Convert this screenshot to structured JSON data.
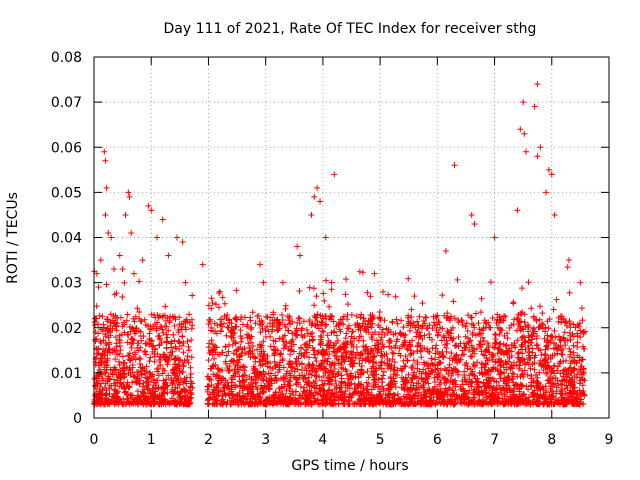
{
  "chart_data": {
    "type": "scatter",
    "title": "Day 111 of 2021, Rate Of TEC Index for receiver sthg",
    "xlabel": "GPS time / hours",
    "ylabel": "ROTI / TECUs",
    "xlim": [
      0,
      9
    ],
    "ylim": [
      0,
      0.08
    ],
    "x_ticks": [
      "0",
      "1",
      "2",
      "3",
      "4",
      "5",
      "6",
      "7",
      "8",
      "9"
    ],
    "y_ticks": [
      "0",
      "0.01",
      "0.02",
      "0.03",
      "0.04",
      "0.05",
      "0.06",
      "0.07",
      "0.08"
    ],
    "grid": true,
    "marker": "+",
    "color": "#ff0000",
    "series": [
      {
        "name": "ROTI",
        "note": "Dense cloud of ~4000 points between 0 and 8.6 h, mostly 0.003-0.02 TECU, gap near 1.9 h; representative peaks listed",
        "points": [
          [
            0.05,
            0.032
          ],
          [
            0.08,
            0.029
          ],
          [
            0.12,
            0.035
          ],
          [
            0.18,
            0.059
          ],
          [
            0.2,
            0.057
          ],
          [
            0.22,
            0.051
          ],
          [
            0.2,
            0.045
          ],
          [
            0.25,
            0.041
          ],
          [
            0.3,
            0.04
          ],
          [
            0.35,
            0.033
          ],
          [
            0.45,
            0.036
          ],
          [
            0.5,
            0.033
          ],
          [
            0.55,
            0.045
          ],
          [
            0.6,
            0.05
          ],
          [
            0.62,
            0.049
          ],
          [
            0.65,
            0.041
          ],
          [
            0.7,
            0.032
          ],
          [
            0.85,
            0.035
          ],
          [
            0.95,
            0.047
          ],
          [
            1.0,
            0.046
          ],
          [
            1.1,
            0.04
          ],
          [
            1.2,
            0.044
          ],
          [
            1.3,
            0.036
          ],
          [
            1.45,
            0.04
          ],
          [
            1.55,
            0.039
          ],
          [
            1.6,
            0.03
          ],
          [
            1.9,
            0.034
          ],
          [
            2.2,
            0.028
          ],
          [
            2.9,
            0.034
          ],
          [
            3.3,
            0.03
          ],
          [
            3.55,
            0.038
          ],
          [
            3.6,
            0.036
          ],
          [
            3.8,
            0.045
          ],
          [
            3.85,
            0.049
          ],
          [
            3.9,
            0.051
          ],
          [
            3.95,
            0.048
          ],
          [
            4.05,
            0.04
          ],
          [
            4.2,
            0.054
          ],
          [
            4.9,
            0.032
          ],
          [
            5.6,
            0.027
          ],
          [
            6.15,
            0.037
          ],
          [
            6.3,
            0.056
          ],
          [
            6.6,
            0.045
          ],
          [
            6.65,
            0.043
          ],
          [
            7.0,
            0.04
          ],
          [
            7.4,
            0.046
          ],
          [
            7.45,
            0.064
          ],
          [
            7.5,
            0.07
          ],
          [
            7.52,
            0.063
          ],
          [
            7.55,
            0.059
          ],
          [
            7.7,
            0.069
          ],
          [
            7.75,
            0.074
          ],
          [
            7.8,
            0.06
          ],
          [
            7.75,
            0.058
          ],
          [
            7.9,
            0.05
          ],
          [
            7.95,
            0.055
          ],
          [
            8.0,
            0.054
          ],
          [
            8.05,
            0.045
          ],
          [
            8.3,
            0.035
          ],
          [
            8.5,
            0.03
          ]
        ]
      }
    ]
  }
}
